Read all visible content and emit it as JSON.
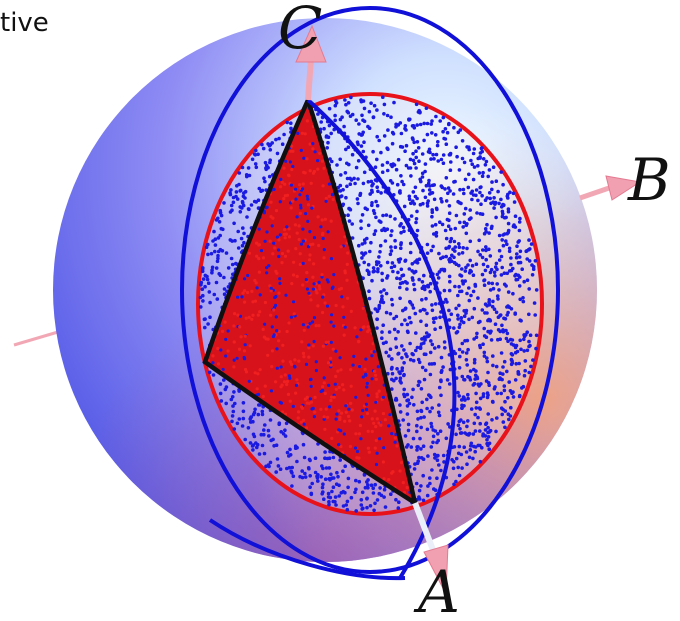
{
  "corner_text": "tive",
  "axes": {
    "a": "A",
    "b": "B",
    "c": "C"
  },
  "colors": {
    "sphere_blue": "#5a5ff0",
    "sphere_light": "#eef7ff",
    "sphere_peach": "#f6a27a",
    "ring_red": "#e8121a",
    "ring_blue": "#1010d8",
    "triangle_fill": "#e0141c",
    "triangle_edge": "#101010",
    "dots_blue": "#1a1ae0",
    "dots_red": "#f02020",
    "axis_arrow": "#f2a7b5"
  }
}
